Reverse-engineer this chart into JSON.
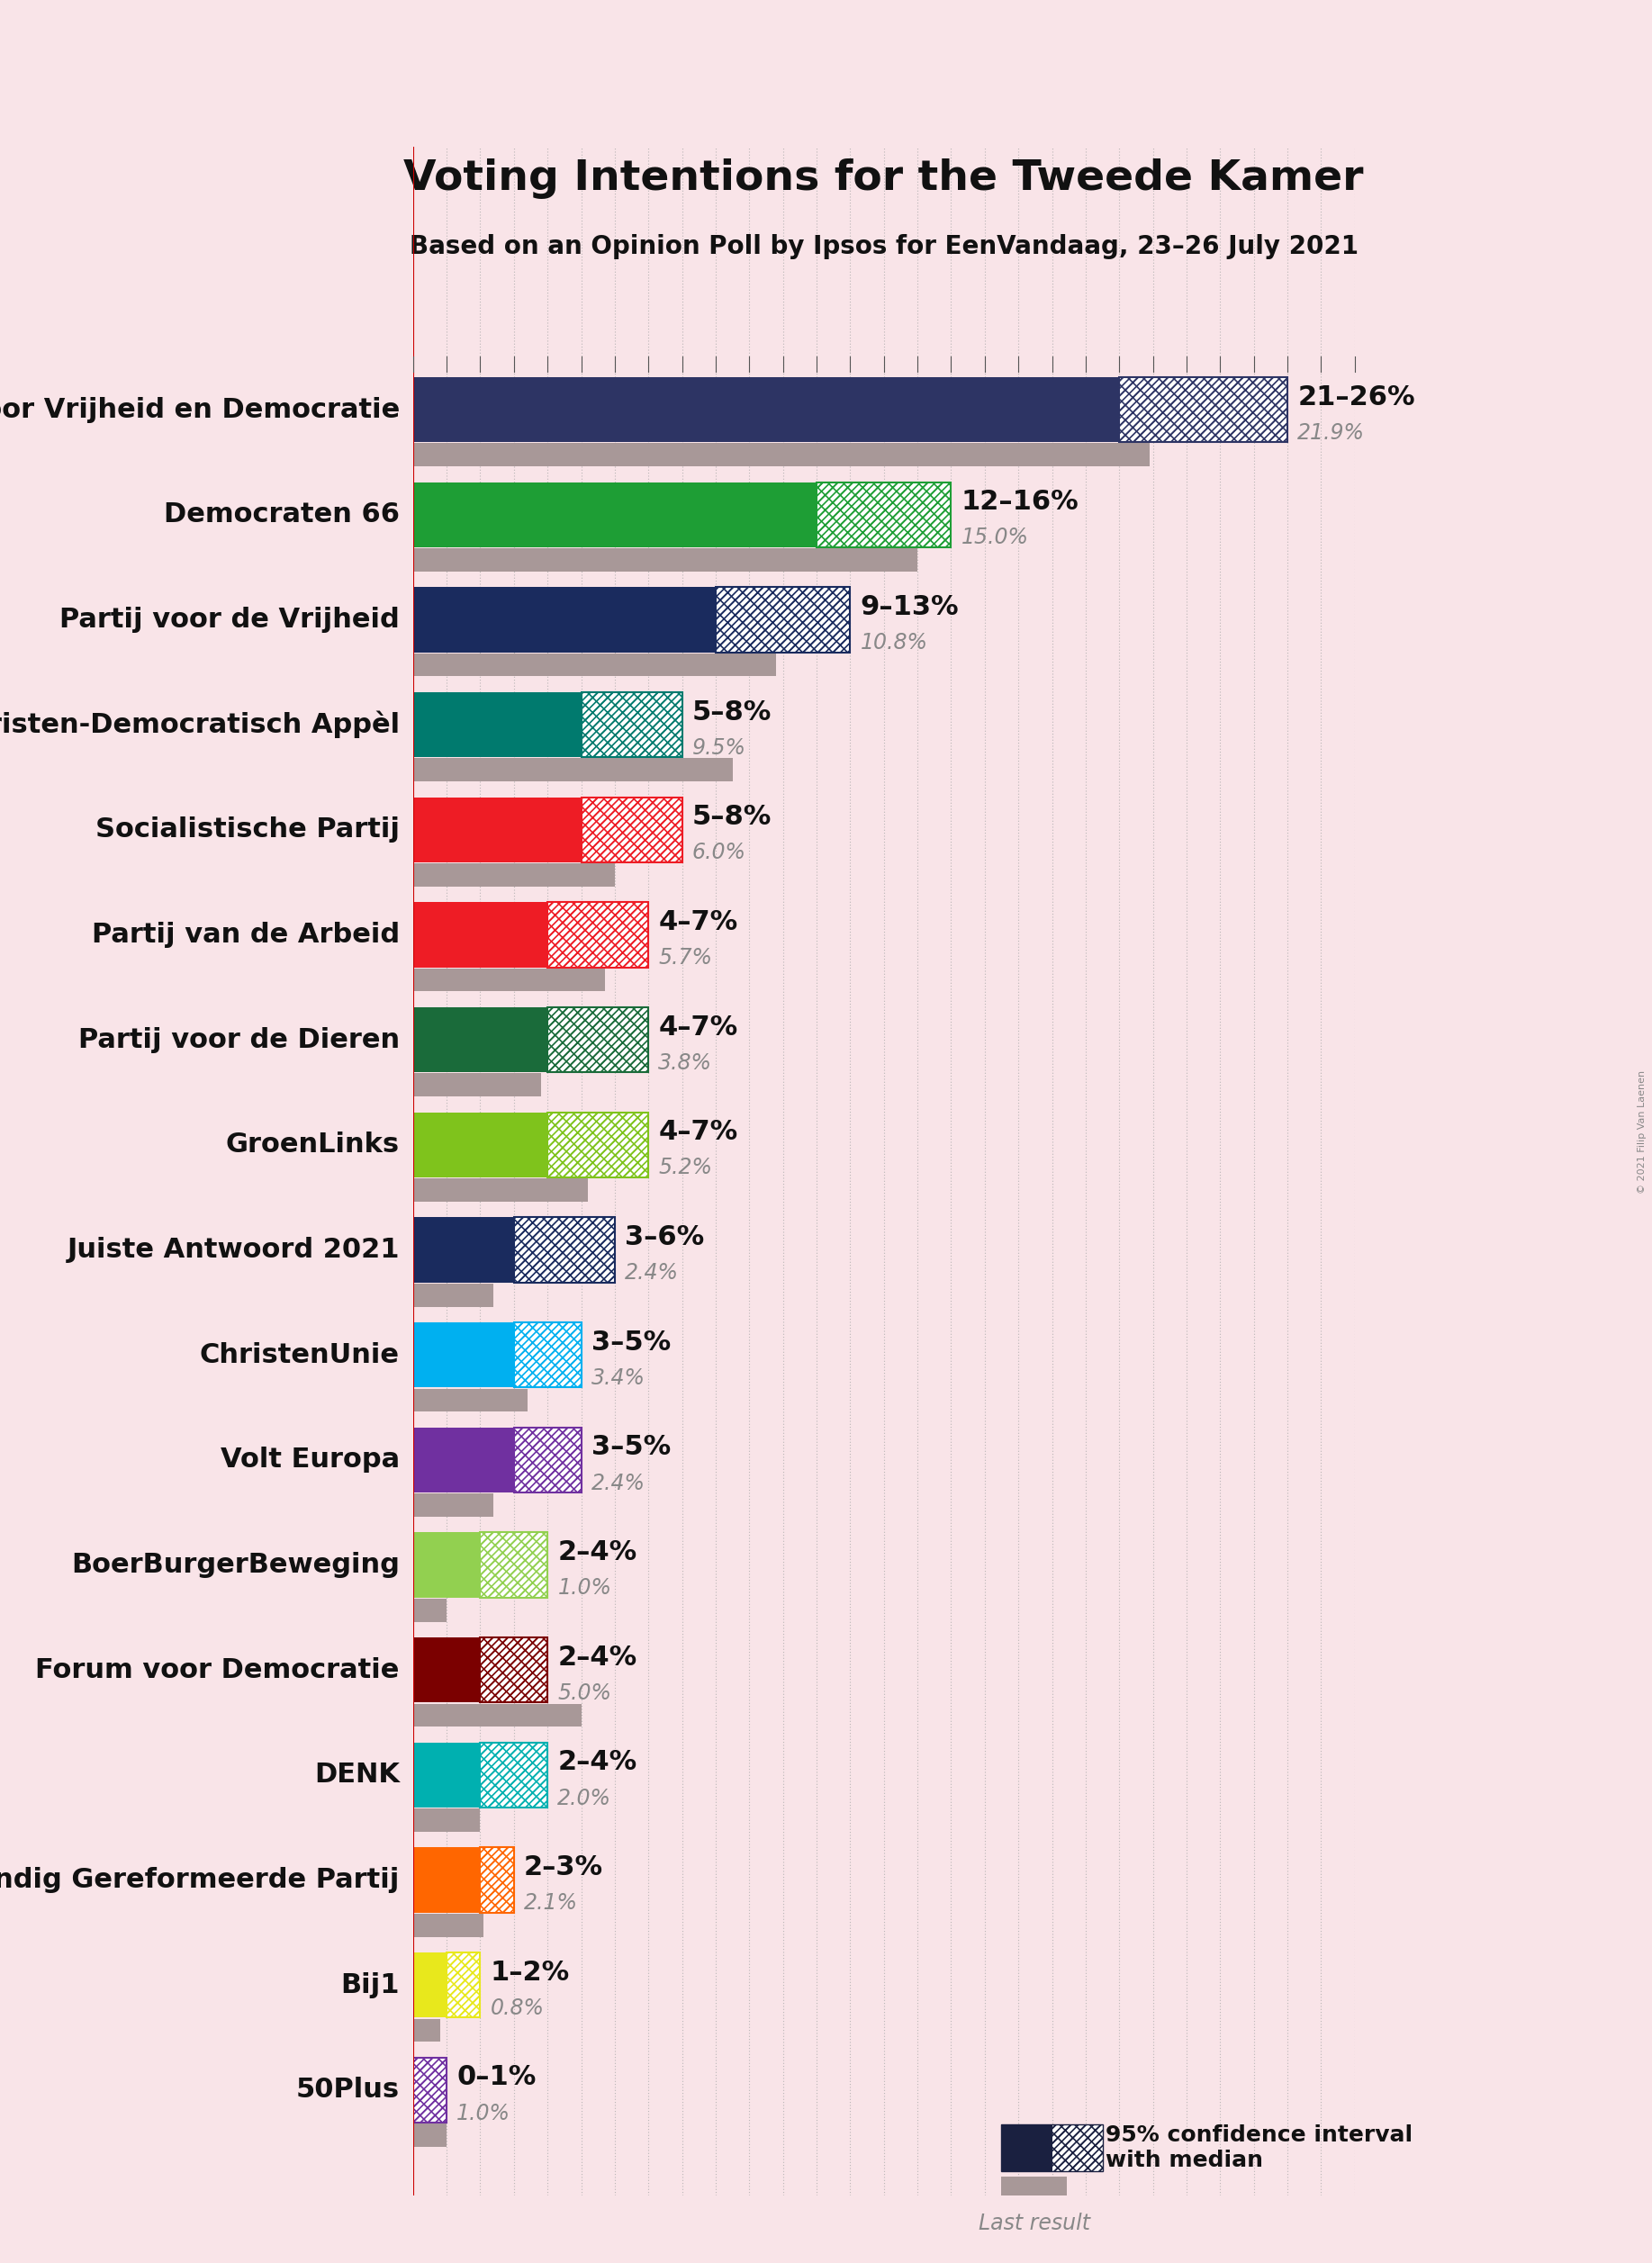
{
  "title": "Voting Intentions for the Tweede Kamer",
  "subtitle": "Based on an Opinion Poll by Ipsos for EenVandaag, 23–26 July 2021",
  "background_color": "#f9e4e8",
  "parties": [
    {
      "name": "Volkspartij voor Vrijheid en Democratie",
      "ci_low": 21,
      "ci_high": 26,
      "median": 23.5,
      "last_result": 21.9,
      "color": "#2d3464",
      "label": "21–26%",
      "last_label": "21.9%"
    },
    {
      "name": "Democraten 66",
      "ci_low": 12,
      "ci_high": 16,
      "median": 14.0,
      "last_result": 15.0,
      "color": "#1e9e35",
      "label": "12–16%",
      "last_label": "15.0%"
    },
    {
      "name": "Partij voor de Vrijheid",
      "ci_low": 9,
      "ci_high": 13,
      "median": 11.0,
      "last_result": 10.8,
      "color": "#1a2b5e",
      "label": "9–13%",
      "last_label": "10.8%"
    },
    {
      "name": "Christen-Democratisch Appèl",
      "ci_low": 5,
      "ci_high": 8,
      "median": 6.5,
      "last_result": 9.5,
      "color": "#007a6e",
      "label": "5–8%",
      "last_label": "9.5%"
    },
    {
      "name": "Socialistische Partij",
      "ci_low": 5,
      "ci_high": 8,
      "median": 6.5,
      "last_result": 6.0,
      "color": "#ee1c25",
      "label": "5–8%",
      "last_label": "6.0%"
    },
    {
      "name": "Partij van de Arbeid",
      "ci_low": 4,
      "ci_high": 7,
      "median": 5.5,
      "last_result": 5.7,
      "color": "#ee1c25",
      "label": "4–7%",
      "last_label": "5.7%"
    },
    {
      "name": "Partij voor de Dieren",
      "ci_low": 4,
      "ci_high": 7,
      "median": 5.5,
      "last_result": 3.8,
      "color": "#1a6b3a",
      "label": "4–7%",
      "last_label": "3.8%"
    },
    {
      "name": "GroenLinks",
      "ci_low": 4,
      "ci_high": 7,
      "median": 5.5,
      "last_result": 5.2,
      "color": "#7fc31c",
      "label": "4–7%",
      "last_label": "5.2%"
    },
    {
      "name": "Juiste Antwoord 2021",
      "ci_low": 3,
      "ci_high": 6,
      "median": 4.5,
      "last_result": 2.4,
      "color": "#1a2b5e",
      "label": "3–6%",
      "last_label": "2.4%"
    },
    {
      "name": "ChristenUnie",
      "ci_low": 3,
      "ci_high": 5,
      "median": 4.0,
      "last_result": 3.4,
      "color": "#00b0f0",
      "label": "3–5%",
      "last_label": "3.4%"
    },
    {
      "name": "Volt Europa",
      "ci_low": 3,
      "ci_high": 5,
      "median": 4.0,
      "last_result": 2.4,
      "color": "#7030a0",
      "label": "3–5%",
      "last_label": "2.4%"
    },
    {
      "name": "BoerBurgerBeweging",
      "ci_low": 2,
      "ci_high": 4,
      "median": 3.0,
      "last_result": 1.0,
      "color": "#92d050",
      "label": "2–4%",
      "last_label": "1.0%"
    },
    {
      "name": "Forum voor Democratie",
      "ci_low": 2,
      "ci_high": 4,
      "median": 3.0,
      "last_result": 5.0,
      "color": "#7b0000",
      "label": "2–4%",
      "last_label": "5.0%"
    },
    {
      "name": "DENK",
      "ci_low": 2,
      "ci_high": 4,
      "median": 3.0,
      "last_result": 2.0,
      "color": "#00b0b0",
      "label": "2–4%",
      "last_label": "2.0%"
    },
    {
      "name": "Staatkundig Gereformeerde Partij",
      "ci_low": 2,
      "ci_high": 3,
      "median": 2.5,
      "last_result": 2.1,
      "color": "#ff6600",
      "label": "2–3%",
      "last_label": "2.1%"
    },
    {
      "name": "Bij1",
      "ci_low": 1,
      "ci_high": 2,
      "median": 1.5,
      "last_result": 0.8,
      "color": "#e8e81c",
      "label": "1–2%",
      "last_label": "0.8%"
    },
    {
      "name": "50Plus",
      "ci_low": 0,
      "ci_high": 1,
      "median": 0.5,
      "last_result": 1.0,
      "color": "#7030a0",
      "label": "0–1%",
      "last_label": "1.0%"
    }
  ],
  "xmax": 28,
  "bar_height": 0.62,
  "last_bar_height": 0.22,
  "grid_color": "#aaaaaa",
  "label_fontsize": 22,
  "last_label_fontsize": 17,
  "title_fontsize": 34,
  "subtitle_fontsize": 20,
  "party_fontsize": 22,
  "legend_label_fontsize": 18,
  "legend_italic_fontsize": 17,
  "copyright": "© 2021 Filip Van Laenen"
}
